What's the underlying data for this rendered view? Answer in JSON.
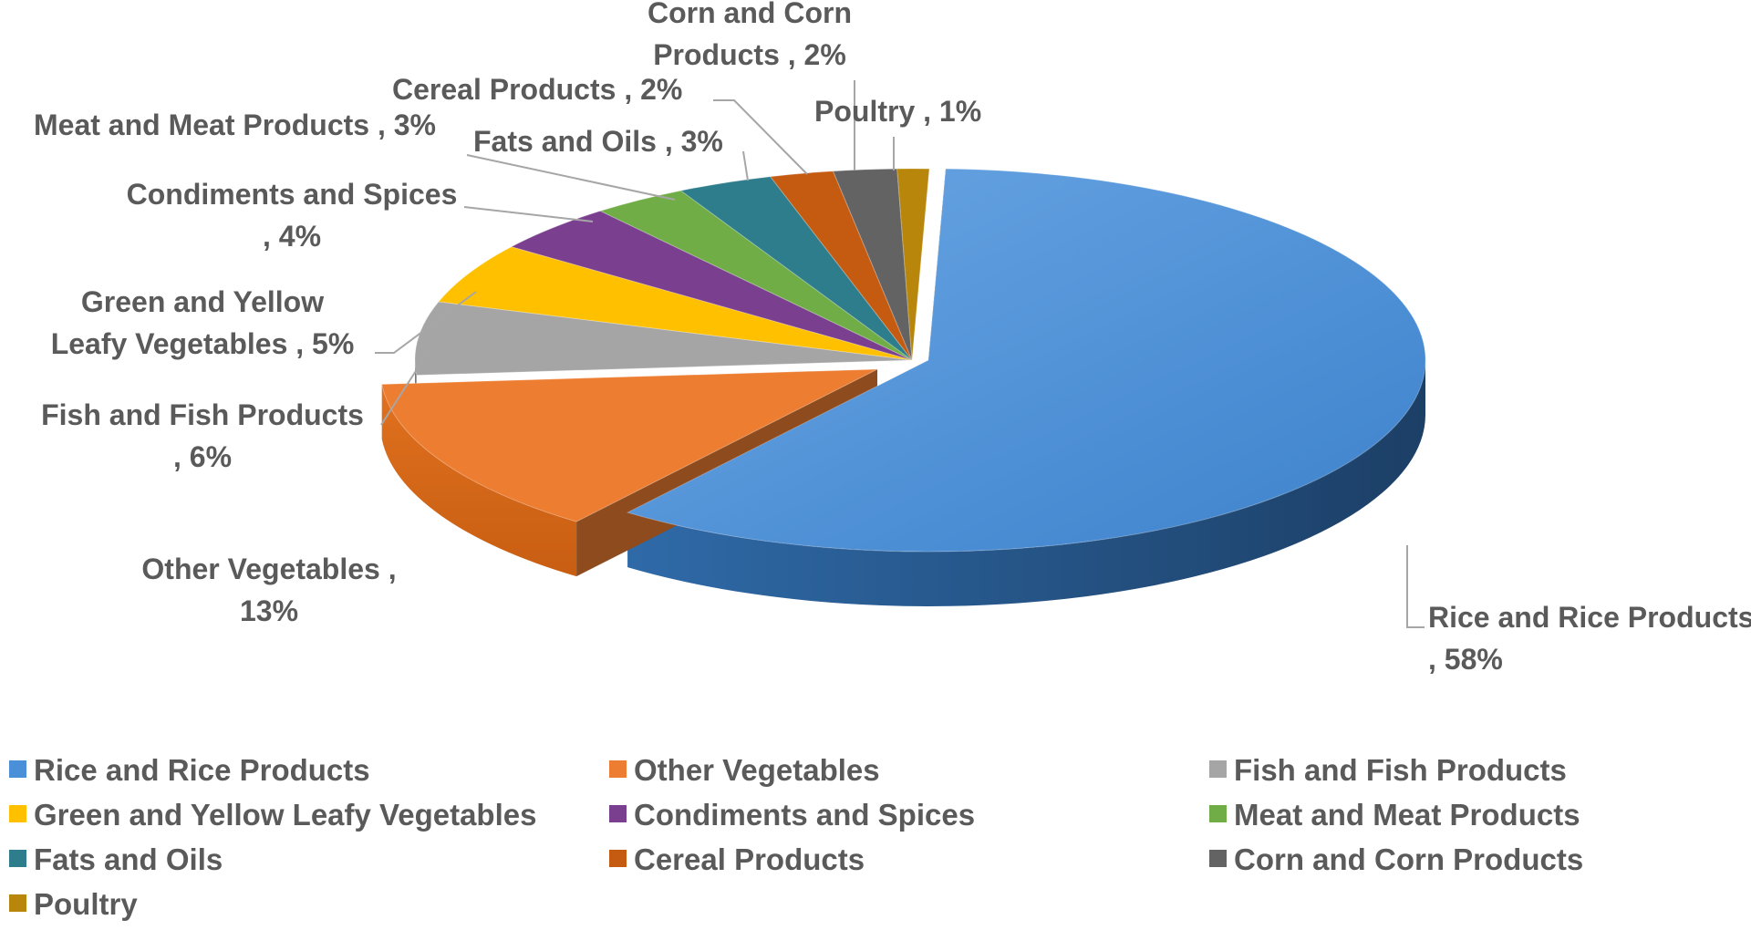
{
  "chart_data": {
    "type": "pie",
    "style": "3d-exploded",
    "slices": [
      {
        "name": "Rice and Rice Products",
        "value": 58,
        "color": "#4a90d9",
        "label_lines": [
          "Rice and Rice Products",
          ", 58%"
        ]
      },
      {
        "name": "Other Vegetables",
        "value": 13,
        "color": "#ed7d31",
        "label_lines": [
          "Other Vegetables   ,",
          "13%"
        ]
      },
      {
        "name": "Fish and Fish Products",
        "value": 6,
        "color": "#a5a5a5",
        "label_lines": [
          "Fish and Fish Products",
          ", 6%"
        ]
      },
      {
        "name": "Green and Yellow Leafy Vegetables",
        "value": 5,
        "color": "#ffc000",
        "label_lines": [
          "Green and Yellow",
          "Leafy Vegetables   , 5%"
        ]
      },
      {
        "name": "Condiments and Spices",
        "value": 4,
        "color": "#7b3f8f",
        "label_lines": [
          "Condiments and Spices",
          ", 4%"
        ]
      },
      {
        "name": "Meat and Meat Products",
        "value": 3,
        "color": "#70ad47",
        "label_lines": [
          "Meat and Meat Products   , 3%"
        ]
      },
      {
        "name": "Fats and Oils",
        "value": 3,
        "color": "#2e7d8c",
        "label_lines": [
          "Fats and Oils   , 3%"
        ]
      },
      {
        "name": "Cereal Products",
        "value": 2,
        "color": "#c55a11",
        "label_lines": [
          "Cereal Products   , 2%"
        ]
      },
      {
        "name": "Corn and Corn Products",
        "value": 2,
        "color": "#636363",
        "label_lines": [
          "Corn and Corn",
          "Products   , 2%"
        ]
      },
      {
        "name": "Poultry",
        "value": 1,
        "color": "#b8860b",
        "label_lines": [
          "Poultry   , 1%"
        ]
      }
    ],
    "legend": {
      "position": "bottom",
      "columns": 3,
      "entries": [
        "Rice and Rice Products",
        "Other Vegetables",
        "Fish and Fish Products",
        "Green and Yellow Leafy Vegetables",
        "Condiments and Spices",
        "Meat and Meat Products",
        "Fats and Oils",
        "Cereal Products",
        "Corn and Corn Products",
        "Poultry"
      ]
    }
  }
}
